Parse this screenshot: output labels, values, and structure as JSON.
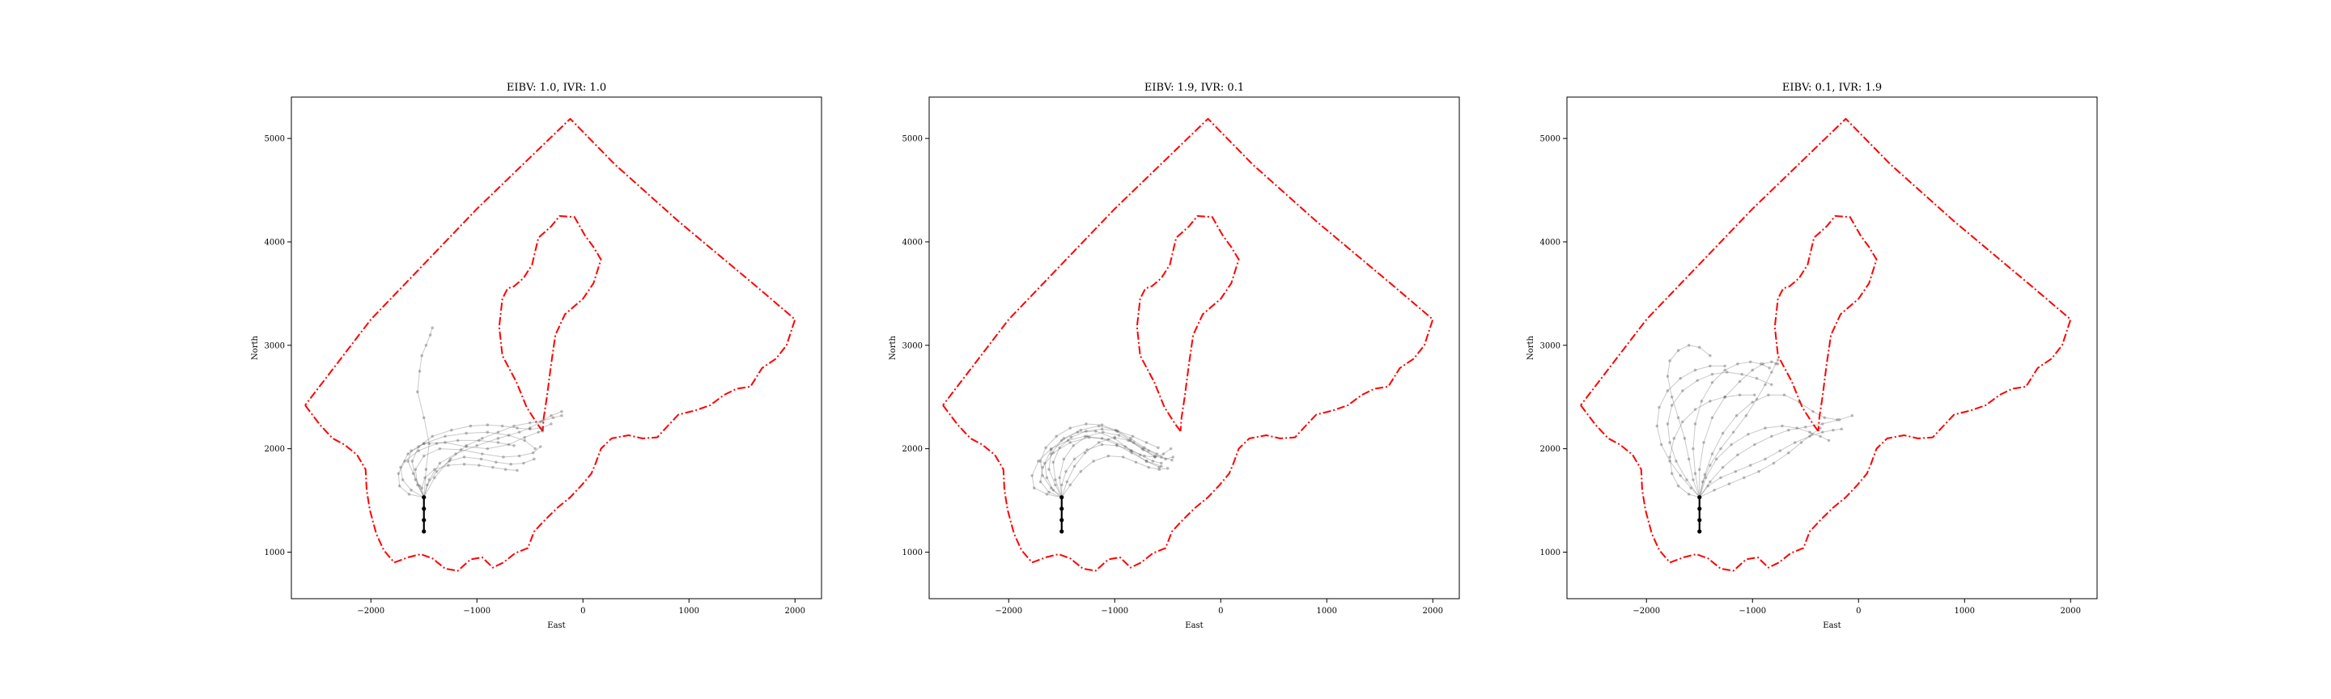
{
  "chart_data": [
    {
      "type": "line",
      "title": "EIBV: 1.0, IVR: 1.0",
      "xlabel": "East",
      "ylabel": "North",
      "xlim": [
        -2750,
        2250
      ],
      "ylim": [
        550,
        5400
      ],
      "xticks": [
        -2000,
        -1000,
        0,
        1000,
        2000
      ],
      "yticks": [
        1000,
        2000,
        3000,
        4000,
        5000
      ],
      "xtick_labels": [
        "−2000",
        "−1000",
        "0",
        "1000",
        "2000"
      ],
      "ytick_labels": [
        "1000",
        "2000",
        "3000",
        "4000",
        "5000"
      ],
      "grid": false,
      "start_segment": {
        "x": [
          -1500,
          -1500
        ],
        "y": [
          1200,
          1530
        ]
      },
      "trajectories": [
        {
          "x": [
            -1500,
            -1540,
            -1600,
            -1650,
            -1620,
            -1500,
            -1300,
            -1100,
            -900,
            -700,
            -550,
            -420,
            -380
          ],
          "y": [
            1530,
            1640,
            1760,
            1880,
            1980,
            2050,
            2060,
            2020,
            2000,
            2040,
            2110,
            2160,
            2170
          ]
        },
        {
          "x": [
            -1500,
            -1450,
            -1350,
            -1200,
            -1000,
            -800,
            -600,
            -500,
            -400,
            -300,
            -200
          ],
          "y": [
            1530,
            1700,
            1860,
            1950,
            2030,
            2100,
            2160,
            2200,
            2260,
            2320,
            2360
          ]
        },
        {
          "x": [
            -1500,
            -1620,
            -1700,
            -1720,
            -1650,
            -1500,
            -1300,
            -1100,
            -900,
            -700,
            -550,
            -450
          ],
          "y": [
            1530,
            1600,
            1700,
            1820,
            1950,
            2050,
            2120,
            2150,
            2160,
            2130,
            2080,
            2000
          ]
        },
        {
          "x": [
            -1500,
            -1480,
            -1450,
            -1500,
            -1560,
            -1540,
            -1520,
            -1480,
            -1440,
            -1420
          ],
          "y": [
            1530,
            1800,
            2050,
            2300,
            2550,
            2750,
            2900,
            3000,
            3100,
            3170
          ]
        },
        {
          "x": [
            -1500,
            -1560,
            -1580,
            -1500,
            -1350,
            -1150,
            -950,
            -750,
            -600,
            -470,
            -400
          ],
          "y": [
            1530,
            1650,
            1800,
            1930,
            2000,
            1990,
            1950,
            1920,
            1930,
            1960,
            2020
          ]
        },
        {
          "x": [
            -1500,
            -1400,
            -1250,
            -1100,
            -950,
            -800,
            -650,
            -500,
            -380,
            -280,
            -200
          ],
          "y": [
            1530,
            1720,
            1900,
            2030,
            2100,
            2160,
            2220,
            2250,
            2270,
            2300,
            2320
          ]
        },
        {
          "x": [
            -1500,
            -1640,
            -1730,
            -1740,
            -1680,
            -1550,
            -1380,
            -1180,
            -980,
            -800,
            -650
          ],
          "y": [
            1530,
            1560,
            1640,
            1760,
            1880,
            1980,
            2050,
            2080,
            2080,
            2060,
            2030
          ]
        },
        {
          "x": [
            -1500,
            -1470,
            -1380,
            -1260,
            -1120,
            -960,
            -820,
            -680,
            -560,
            -460
          ],
          "y": [
            1530,
            1650,
            1780,
            1880,
            1920,
            1900,
            1870,
            1850,
            1860,
            1900
          ]
        },
        {
          "x": [
            -1500,
            -1580,
            -1610,
            -1550,
            -1420,
            -1240,
            -1060,
            -900,
            -760,
            -620,
            -500,
            -390,
            -300
          ],
          "y": [
            1530,
            1700,
            1880,
            2020,
            2120,
            2180,
            2220,
            2230,
            2220,
            2200,
            2190,
            2200,
            2240
          ]
        },
        {
          "x": [
            -1500,
            -1520,
            -1490,
            -1400,
            -1270,
            -1120,
            -980,
            -850,
            -730,
            -620
          ],
          "y": [
            1530,
            1620,
            1720,
            1800,
            1840,
            1850,
            1840,
            1820,
            1800,
            1790
          ]
        }
      ]
    },
    {
      "type": "line",
      "title": "EIBV: 1.9, IVR: 0.1",
      "xlabel": "East",
      "ylabel": "North",
      "xlim": [
        -2750,
        2250
      ],
      "ylim": [
        550,
        5400
      ],
      "xticks": [
        -2000,
        -1000,
        0,
        1000,
        2000
      ],
      "yticks": [
        1000,
        2000,
        3000,
        4000,
        5000
      ],
      "xtick_labels": [
        "−2000",
        "−1000",
        "0",
        "1000",
        "2000"
      ],
      "ytick_labels": [
        "1000",
        "2000",
        "3000",
        "4000",
        "5000"
      ],
      "grid": false,
      "start_segment": {
        "x": [
          -1500,
          -1500
        ],
        "y": [
          1200,
          1530
        ]
      },
      "trajectories": [
        {
          "x": [
            -1500,
            -1560,
            -1620,
            -1600,
            -1500,
            -1350,
            -1180,
            -1000,
            -850,
            -700,
            -560
          ],
          "y": [
            1530,
            1650,
            1800,
            1950,
            2080,
            2160,
            2170,
            2100,
            1980,
            1880,
            1830
          ]
        },
        {
          "x": [
            -1500,
            -1450,
            -1380,
            -1280,
            -1150,
            -1000,
            -870,
            -740,
            -620,
            -520,
            -450
          ],
          "y": [
            1530,
            1680,
            1830,
            1960,
            2060,
            2110,
            2080,
            2000,
            1930,
            1900,
            1920
          ]
        },
        {
          "x": [
            -1500,
            -1620,
            -1700,
            -1680,
            -1580,
            -1420,
            -1240,
            -1060,
            -900,
            -760,
            -640,
            -560
          ],
          "y": [
            1530,
            1580,
            1680,
            1820,
            1960,
            2060,
            2110,
            2090,
            2020,
            1940,
            1880,
            1860
          ]
        },
        {
          "x": [
            -1500,
            -1520,
            -1480,
            -1390,
            -1260,
            -1110,
            -960,
            -820,
            -680,
            -560,
            -460
          ],
          "y": [
            1530,
            1720,
            1900,
            2030,
            2120,
            2160,
            2130,
            2060,
            1980,
            1920,
            1890
          ]
        },
        {
          "x": [
            -1500,
            -1580,
            -1640,
            -1660,
            -1600,
            -1480,
            -1320,
            -1150,
            -990,
            -850,
            -720,
            -600
          ],
          "y": [
            1530,
            1600,
            1720,
            1860,
            1990,
            2100,
            2180,
            2220,
            2180,
            2100,
            2010,
            1950
          ]
        },
        {
          "x": [
            -1500,
            -1420,
            -1320,
            -1200,
            -1060,
            -920,
            -800,
            -680,
            -580,
            -500
          ],
          "y": [
            1530,
            1650,
            1780,
            1880,
            1930,
            1920,
            1870,
            1820,
            1800,
            1810
          ]
        },
        {
          "x": [
            -1500,
            -1640,
            -1760,
            -1780,
            -1720,
            -1600,
            -1440,
            -1280,
            -1120,
            -980,
            -840,
            -700,
            -580
          ],
          "y": [
            1530,
            1560,
            1620,
            1740,
            1880,
            2000,
            2080,
            2120,
            2100,
            2040,
            1960,
            1880,
            1820
          ]
        },
        {
          "x": [
            -1500,
            -1500,
            -1460,
            -1380,
            -1260,
            -1120,
            -980,
            -840,
            -720,
            -620,
            -540,
            -470
          ],
          "y": [
            1530,
            1650,
            1780,
            1900,
            1990,
            2040,
            2030,
            1980,
            1930,
            1920,
            1950,
            2000
          ]
        },
        {
          "x": [
            -1500,
            -1560,
            -1580,
            -1520,
            -1410,
            -1270,
            -1120,
            -970,
            -830,
            -700,
            -590
          ],
          "y": [
            1530,
            1700,
            1870,
            2010,
            2110,
            2170,
            2190,
            2170,
            2120,
            2060,
            2010
          ]
        },
        {
          "x": [
            -1500,
            -1600,
            -1680,
            -1700,
            -1650,
            -1550,
            -1420,
            -1270,
            -1120,
            -980,
            -850,
            -730,
            -620
          ],
          "y": [
            1530,
            1620,
            1740,
            1880,
            2010,
            2120,
            2200,
            2240,
            2230,
            2170,
            2080,
            1990,
            1920
          ]
        }
      ]
    },
    {
      "type": "line",
      "title": "EIBV: 0.1, IVR: 1.9",
      "xlabel": "East",
      "ylabel": "North",
      "xlim": [
        -2750,
        2250
      ],
      "ylim": [
        550,
        5400
      ],
      "xticks": [
        -2000,
        -1000,
        0,
        1000,
        2000
      ],
      "yticks": [
        1000,
        2000,
        3000,
        4000,
        5000
      ],
      "xtick_labels": [
        "−2000",
        "−1000",
        "0",
        "1000",
        "2000"
      ],
      "ytick_labels": [
        "1000",
        "2000",
        "3000",
        "4000",
        "5000"
      ],
      "grid": false,
      "start_segment": {
        "x": [
          -1500,
          -1500
        ],
        "y": [
          1200,
          1530
        ]
      },
      "trajectories": [
        {
          "x": [
            -1500,
            -1560,
            -1600,
            -1640,
            -1700,
            -1760,
            -1800,
            -1780,
            -1700,
            -1600,
            -1500,
            -1400
          ],
          "y": [
            1530,
            1700,
            1900,
            2100,
            2300,
            2500,
            2700,
            2850,
            2950,
            3000,
            2980,
            2900
          ]
        },
        {
          "x": [
            -1500,
            -1450,
            -1380,
            -1280,
            -1150,
            -1000,
            -850,
            -700,
            -560,
            -430,
            -320,
            -200
          ],
          "y": [
            1530,
            1750,
            1950,
            2150,
            2320,
            2450,
            2520,
            2520,
            2450,
            2360,
            2300,
            2280
          ]
        },
        {
          "x": [
            -1500,
            -1400,
            -1280,
            -1140,
            -980,
            -820,
            -660,
            -500,
            -340,
            -180,
            -60
          ],
          "y": [
            1530,
            1680,
            1820,
            1940,
            2040,
            2120,
            2180,
            2210,
            2240,
            2280,
            2320
          ]
        },
        {
          "x": [
            -1500,
            -1580,
            -1680,
            -1780,
            -1860,
            -1900,
            -1880,
            -1800,
            -1680,
            -1540,
            -1400,
            -1260
          ],
          "y": [
            1530,
            1620,
            1740,
            1880,
            2040,
            2220,
            2400,
            2560,
            2680,
            2760,
            2800,
            2800
          ]
        },
        {
          "x": [
            -1500,
            -1500,
            -1460,
            -1380,
            -1260,
            -1120,
            -1000,
            -900,
            -820,
            -760
          ],
          "y": [
            1530,
            1800,
            2060,
            2300,
            2500,
            2650,
            2760,
            2820,
            2840,
            2820
          ]
        },
        {
          "x": [
            -1500,
            -1440,
            -1340,
            -1200,
            -1040,
            -880,
            -720,
            -580,
            -460,
            -360,
            -280
          ],
          "y": [
            1530,
            1720,
            1900,
            2040,
            2140,
            2200,
            2220,
            2200,
            2160,
            2120,
            2080
          ]
        },
        {
          "x": [
            -1500,
            -1600,
            -1700,
            -1760,
            -1780,
            -1740,
            -1660,
            -1540,
            -1400,
            -1260,
            -1120,
            -980
          ],
          "y": [
            1530,
            1560,
            1640,
            1760,
            1920,
            2100,
            2260,
            2380,
            2460,
            2500,
            2520,
            2520
          ]
        },
        {
          "x": [
            -1500,
            -1470,
            -1400,
            -1300,
            -1180,
            -1060,
            -960,
            -880,
            -820,
            -780,
            -760
          ],
          "y": [
            1530,
            1680,
            1840,
            2000,
            2160,
            2320,
            2480,
            2620,
            2740,
            2820,
            2860
          ]
        },
        {
          "x": [
            -1500,
            -1420,
            -1300,
            -1160,
            -1020,
            -880,
            -740,
            -600,
            -460,
            -340,
            -240,
            -160
          ],
          "y": [
            1530,
            1640,
            1720,
            1780,
            1840,
            1900,
            1980,
            2060,
            2120,
            2160,
            2180,
            2190
          ]
        },
        {
          "x": [
            -1500,
            -1540,
            -1560,
            -1540,
            -1480,
            -1380,
            -1260,
            -1140,
            -1020,
            -920,
            -840
          ],
          "y": [
            1530,
            1760,
            2000,
            2240,
            2460,
            2640,
            2760,
            2820,
            2840,
            2820,
            2780
          ]
        },
        {
          "x": [
            -1500,
            -1360,
            -1220,
            -1080,
            -940,
            -800,
            -660,
            -540,
            -440,
            -360
          ],
          "y": [
            1530,
            1600,
            1660,
            1720,
            1780,
            1860,
            1960,
            2060,
            2140,
            2200
          ]
        },
        {
          "x": [
            -1500,
            -1620,
            -1720,
            -1780,
            -1800,
            -1760,
            -1660,
            -1520,
            -1380,
            -1240,
            -1100,
            -960,
            -820
          ],
          "y": [
            1530,
            1700,
            1880,
            2060,
            2240,
            2420,
            2560,
            2660,
            2720,
            2740,
            2720,
            2680,
            2620
          ]
        }
      ]
    }
  ]
}
